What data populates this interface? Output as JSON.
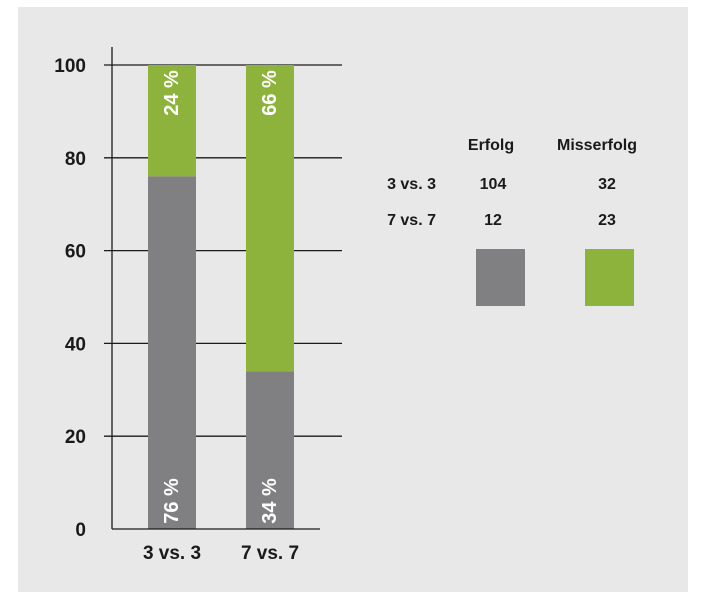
{
  "chart_data": {
    "type": "bar",
    "stacked": true,
    "categories": [
      "3 vs. 3",
      "7 vs. 7"
    ],
    "series": [
      {
        "name": "Erfolg",
        "values": [
          76,
          34
        ],
        "labels": [
          "76 %",
          "34 %"
        ],
        "color": "#808083"
      },
      {
        "name": "Misserfolg",
        "values": [
          24,
          66
        ],
        "labels": [
          "24 %",
          "66 %"
        ],
        "color": "#8db33c"
      }
    ],
    "ylim": [
      0,
      100
    ],
    "yticks": [
      0,
      20,
      40,
      60,
      80,
      100
    ],
    "grid": true,
    "title": "",
    "xlabel": "",
    "ylabel": "",
    "legend": {
      "position": "right",
      "type": "table",
      "columns": [
        "Erfolg",
        "Misserfolg"
      ],
      "rows": [
        {
          "label": "3 vs. 3",
          "values": [
            "104",
            "32"
          ]
        },
        {
          "label": "7 vs. 7",
          "values": [
            "12",
            "23"
          ]
        }
      ]
    }
  },
  "colors": {
    "background": "#e8e8e8",
    "erfolg": "#808083",
    "misserfolg": "#8db33c",
    "axis": "#1a1a1a"
  }
}
